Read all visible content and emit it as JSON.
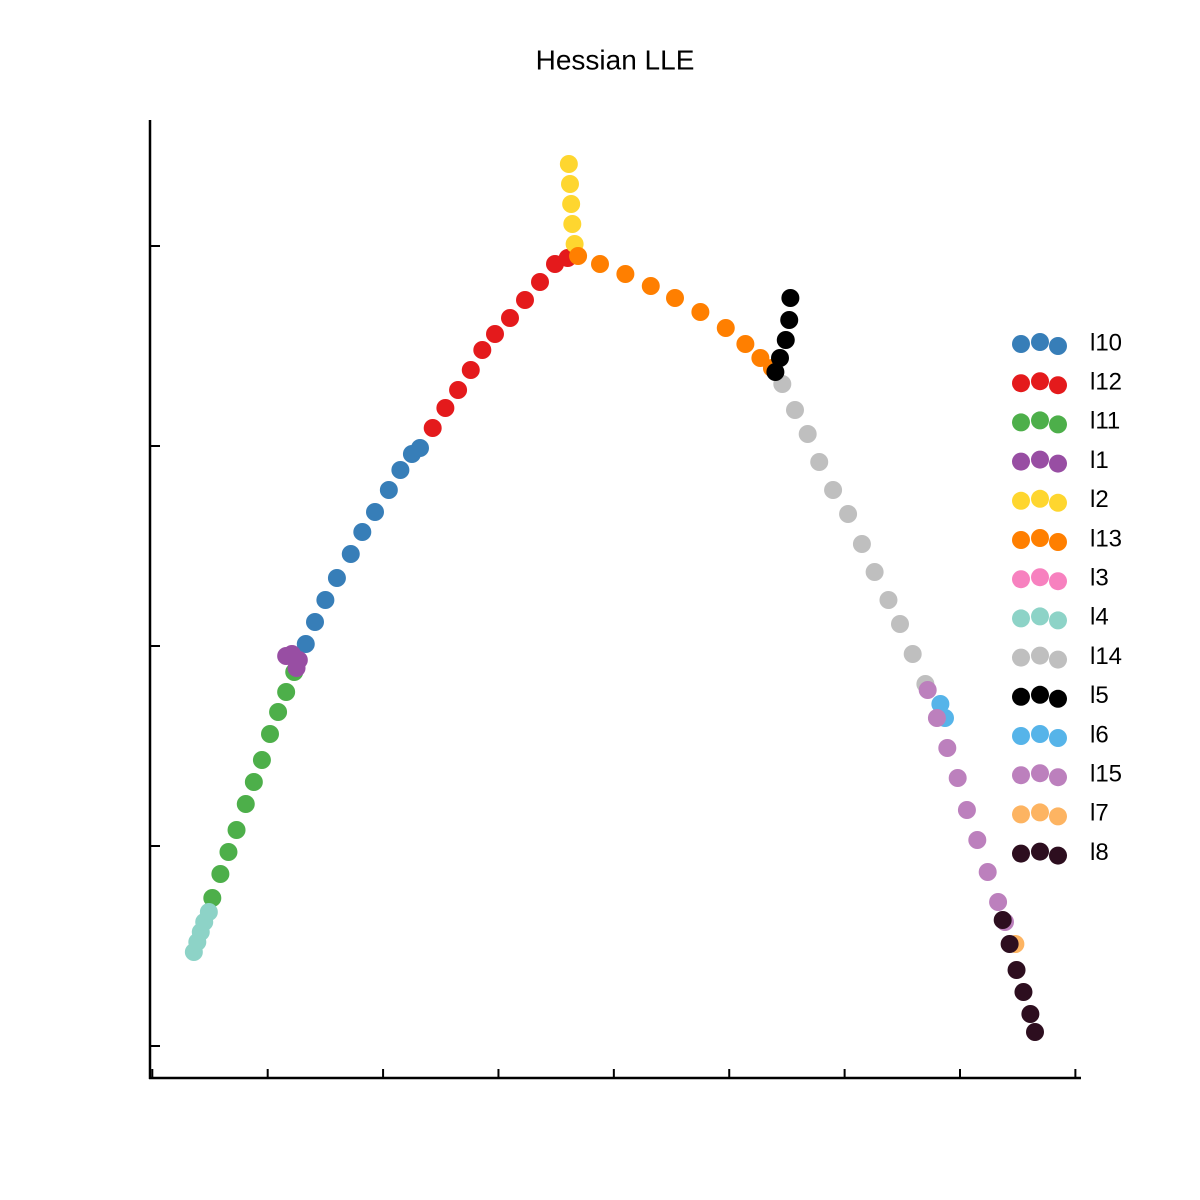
{
  "chart_data": {
    "type": "scatter",
    "title": "Hessian LLE",
    "xlim": [
      -0.02,
      8.04
    ],
    "ylim": [
      -0.16,
      4.63
    ],
    "xticks": [
      0,
      1,
      2,
      3,
      4,
      5,
      6,
      7,
      8
    ],
    "yticks": [
      0,
      1,
      2,
      3,
      4
    ],
    "series": [
      {
        "name": "l10",
        "color": "#377eb8",
        "x": [
          1.33,
          1.41,
          1.5,
          1.6,
          1.72,
          1.82,
          1.93,
          2.05,
          2.15,
          2.25,
          2.32
        ],
        "y": [
          2.01,
          2.12,
          2.23,
          2.34,
          2.46,
          2.57,
          2.67,
          2.78,
          2.88,
          2.96,
          2.99
        ]
      },
      {
        "name": "l12",
        "color": "#e41a1c",
        "x": [
          2.43,
          2.54,
          2.65,
          2.76,
          2.86,
          2.97,
          3.1,
          3.23,
          3.36,
          3.49,
          3.6
        ],
        "y": [
          3.09,
          3.19,
          3.28,
          3.38,
          3.48,
          3.56,
          3.64,
          3.73,
          3.82,
          3.91,
          3.94
        ]
      },
      {
        "name": "l11",
        "color": "#4daf4a",
        "x": [
          0.52,
          0.59,
          0.66,
          0.73,
          0.81,
          0.88,
          0.95,
          1.02,
          1.09,
          1.16,
          1.23
        ],
        "y": [
          0.74,
          0.86,
          0.97,
          1.08,
          1.21,
          1.32,
          1.43,
          1.56,
          1.67,
          1.77,
          1.87
        ]
      },
      {
        "name": "l1",
        "color": "#984ea3",
        "x": [
          1.16,
          1.21,
          1.27,
          1.25
        ],
        "y": [
          1.95,
          1.96,
          1.93,
          1.89
        ]
      },
      {
        "name": "l2",
        "color": "#fed62f",
        "x": [
          3.61,
          3.62,
          3.63,
          3.64,
          3.66
        ],
        "y": [
          4.41,
          4.31,
          4.21,
          4.11,
          4.01
        ]
      },
      {
        "name": "l13",
        "color": "#ff7f00",
        "x": [
          3.69,
          3.88,
          4.1,
          4.32,
          4.53,
          4.75,
          4.97,
          5.14,
          5.27,
          5.37
        ],
        "y": [
          3.95,
          3.91,
          3.86,
          3.8,
          3.74,
          3.67,
          3.59,
          3.51,
          3.44,
          3.39
        ]
      },
      {
        "name": "l3",
        "color": "#f781bf",
        "x": [],
        "y": []
      },
      {
        "name": "l4",
        "color": "#8dd3c7",
        "x": [
          0.36,
          0.39,
          0.42,
          0.45,
          0.49
        ],
        "y": [
          0.47,
          0.52,
          0.57,
          0.62,
          0.67
        ]
      },
      {
        "name": "l14",
        "color": "#bfbfbf",
        "x": [
          5.46,
          5.57,
          5.68,
          5.78,
          5.9,
          6.03,
          6.15,
          6.26,
          6.38,
          6.48,
          6.59,
          6.7
        ],
        "y": [
          3.31,
          3.18,
          3.06,
          2.92,
          2.78,
          2.66,
          2.51,
          2.37,
          2.23,
          2.11,
          1.96,
          1.81
        ]
      },
      {
        "name": "l5",
        "color": "#000000",
        "x": [
          5.4,
          5.44,
          5.49,
          5.52,
          5.53
        ],
        "y": [
          3.37,
          3.44,
          3.53,
          3.63,
          3.74
        ]
      },
      {
        "name": "l6",
        "color": "#56b4e9",
        "x": [
          6.83,
          6.87
        ],
        "y": [
          1.71,
          1.64
        ]
      },
      {
        "name": "l15",
        "color": "#bc80bd",
        "x": [
          6.72,
          6.8,
          6.89,
          6.98,
          7.06,
          7.15,
          7.24,
          7.33,
          7.39
        ],
        "y": [
          1.78,
          1.64,
          1.49,
          1.34,
          1.18,
          1.03,
          0.87,
          0.72,
          0.62
        ]
      },
      {
        "name": "l7",
        "color": "#fdb462",
        "x": [
          7.48
        ],
        "y": [
          0.51
        ]
      },
      {
        "name": "l8",
        "color": "#2d0e1f",
        "x": [
          7.37,
          7.43,
          7.49,
          7.55,
          7.61,
          7.65
        ],
        "y": [
          0.63,
          0.51,
          0.38,
          0.27,
          0.16,
          0.07
        ]
      }
    ]
  }
}
